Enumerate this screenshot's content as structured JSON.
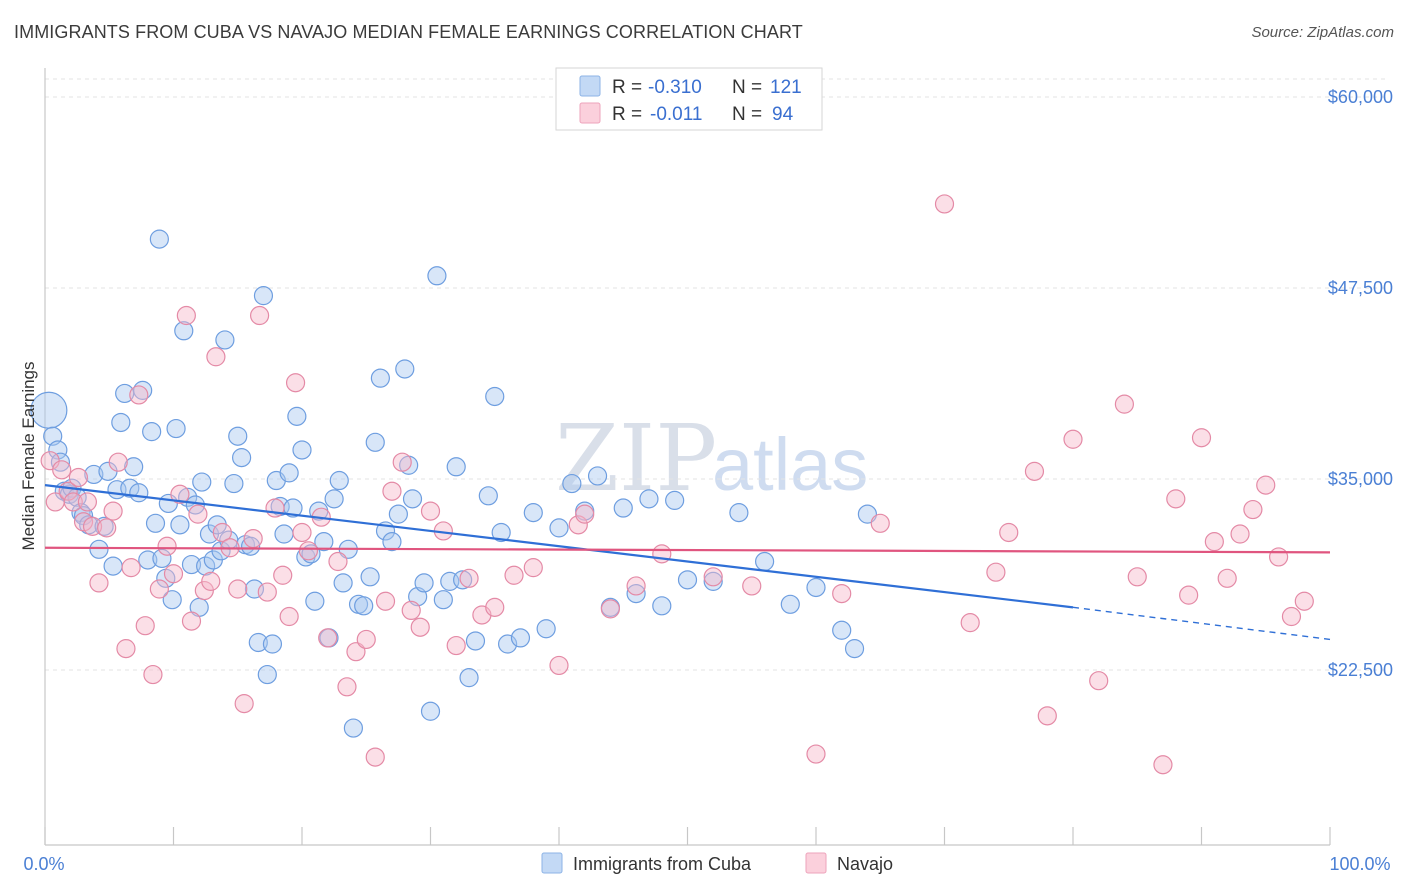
{
  "title": "IMMIGRANTS FROM CUBA VS NAVAJO MEDIAN FEMALE EARNINGS CORRELATION CHART",
  "source": "Source: ZipAtlas.com",
  "watermark": {
    "zip": "ZIP",
    "atlas": "atlas"
  },
  "legend": {
    "rows": [
      {
        "r_label": "R =",
        "r_value": "-0.310",
        "n_label": "N =",
        "n_value": "121",
        "color": "#a8c8f0"
      },
      {
        "r_label": "R =",
        "r_value": "-0.011",
        "n_label": "N =",
        "n_value": "94",
        "color": "#f6b8ca"
      }
    ]
  },
  "bottom_legend": [
    {
      "label": "Immigrants from Cuba",
      "color": "#a8c8f0"
    },
    {
      "label": "Navajo",
      "color": "#f6b8ca"
    }
  ],
  "chart_data": {
    "type": "scatter",
    "title": "IMMIGRANTS FROM CUBA VS NAVAJO MEDIAN FEMALE EARNINGS CORRELATION CHART",
    "xlabel": "",
    "ylabel": "Median Female Earnings",
    "xlim": [
      0,
      100
    ],
    "ylim": [
      12000,
      62000
    ],
    "x_tick_labels": [
      "0.0%",
      "100.0%"
    ],
    "y_ticks": [
      22500,
      35000,
      47500,
      60000
    ],
    "y_tick_labels": [
      "$22,500",
      "$35,000",
      "$47,500",
      "$60,000"
    ],
    "grid": true,
    "legend_position": "top-center",
    "series": [
      {
        "name": "Immigrants from Cuba",
        "color": "#a8c8f0",
        "stroke": "#6e9ee0",
        "trend": {
          "x0": 0,
          "y0": 34600,
          "x1": 80,
          "y1": 26600,
          "dash_to_x": 100,
          "dash_to_y": 24500,
          "color": "#2f6fd6"
        },
        "points": [
          [
            0.3,
            39500
          ],
          [
            0.6,
            37800
          ],
          [
            1.0,
            36900
          ],
          [
            1.2,
            36100
          ],
          [
            1.5,
            34200
          ],
          [
            1.9,
            34000
          ],
          [
            2.1,
            34400
          ],
          [
            2.5,
            33800
          ],
          [
            2.8,
            32800
          ],
          [
            3.0,
            32600
          ],
          [
            3.4,
            32000
          ],
          [
            3.8,
            35300
          ],
          [
            4.2,
            30400
          ],
          [
            4.6,
            31900
          ],
          [
            4.9,
            35500
          ],
          [
            5.3,
            29300
          ],
          [
            5.6,
            34300
          ],
          [
            5.9,
            38700
          ],
          [
            6.2,
            40600
          ],
          [
            6.6,
            34400
          ],
          [
            6.9,
            35800
          ],
          [
            7.3,
            34100
          ],
          [
            7.6,
            40800
          ],
          [
            8.0,
            29700
          ],
          [
            8.3,
            38100
          ],
          [
            8.6,
            32100
          ],
          [
            8.9,
            50700
          ],
          [
            9.1,
            29800
          ],
          [
            9.4,
            28500
          ],
          [
            9.6,
            33400
          ],
          [
            9.9,
            27100
          ],
          [
            10.2,
            38300
          ],
          [
            10.5,
            32000
          ],
          [
            10.8,
            44700
          ],
          [
            11.1,
            33800
          ],
          [
            11.4,
            29400
          ],
          [
            11.7,
            33300
          ],
          [
            12.0,
            26600
          ],
          [
            12.2,
            34800
          ],
          [
            12.5,
            29300
          ],
          [
            12.8,
            31400
          ],
          [
            13.1,
            29700
          ],
          [
            13.4,
            32000
          ],
          [
            13.7,
            30300
          ],
          [
            14.0,
            44100
          ],
          [
            14.3,
            31000
          ],
          [
            14.7,
            34700
          ],
          [
            15.0,
            37800
          ],
          [
            15.3,
            36400
          ],
          [
            15.6,
            30700
          ],
          [
            16.0,
            30600
          ],
          [
            16.3,
            27800
          ],
          [
            16.6,
            24300
          ],
          [
            17.0,
            47000
          ],
          [
            17.3,
            22200
          ],
          [
            17.7,
            24200
          ],
          [
            18.0,
            34900
          ],
          [
            18.3,
            33200
          ],
          [
            18.6,
            31400
          ],
          [
            19.0,
            35400
          ],
          [
            19.3,
            33100
          ],
          [
            19.6,
            39100
          ],
          [
            20.0,
            36900
          ],
          [
            20.3,
            29900
          ],
          [
            20.7,
            30100
          ],
          [
            21.0,
            27000
          ],
          [
            21.3,
            32900
          ],
          [
            21.7,
            30900
          ],
          [
            22.1,
            24600
          ],
          [
            22.5,
            33700
          ],
          [
            22.9,
            34900
          ],
          [
            23.2,
            28200
          ],
          [
            23.6,
            30400
          ],
          [
            24.0,
            18700
          ],
          [
            24.4,
            26800
          ],
          [
            24.8,
            26700
          ],
          [
            25.3,
            28600
          ],
          [
            25.7,
            37400
          ],
          [
            26.1,
            41600
          ],
          [
            26.5,
            31600
          ],
          [
            27.0,
            30900
          ],
          [
            27.5,
            32700
          ],
          [
            28.0,
            42200
          ],
          [
            28.3,
            35900
          ],
          [
            28.6,
            33700
          ],
          [
            29.0,
            27300
          ],
          [
            29.5,
            28200
          ],
          [
            30.0,
            19800
          ],
          [
            30.5,
            48300
          ],
          [
            31.0,
            27100
          ],
          [
            31.5,
            28300
          ],
          [
            32.0,
            35800
          ],
          [
            32.5,
            28400
          ],
          [
            33.0,
            22000
          ],
          [
            33.5,
            24400
          ],
          [
            34.5,
            33900
          ],
          [
            35.0,
            40400
          ],
          [
            35.5,
            31500
          ],
          [
            36.0,
            24200
          ],
          [
            37.0,
            24600
          ],
          [
            38.0,
            32800
          ],
          [
            39.0,
            25200
          ],
          [
            40.0,
            31800
          ],
          [
            41.0,
            34700
          ],
          [
            42.0,
            32900
          ],
          [
            43.0,
            35200
          ],
          [
            44.0,
            26600
          ],
          [
            45.0,
            33100
          ],
          [
            46.0,
            27500
          ],
          [
            47.0,
            33700
          ],
          [
            48.0,
            26700
          ],
          [
            49.0,
            33600
          ],
          [
            50.0,
            28400
          ],
          [
            52.0,
            28300
          ],
          [
            54.0,
            32800
          ],
          [
            56.0,
            29600
          ],
          [
            58.0,
            26800
          ],
          [
            60.0,
            27900
          ],
          [
            62.0,
            25100
          ],
          [
            63.0,
            23900
          ],
          [
            64.0,
            32700
          ]
        ]
      },
      {
        "name": "Navajo",
        "color": "#f6b8ca",
        "stroke": "#e48aa6",
        "trend": {
          "x0": 0,
          "y0": 30500,
          "x1": 100,
          "y1": 30200,
          "color": "#e0557f"
        },
        "points": [
          [
            0.4,
            36200
          ],
          [
            0.8,
            33500
          ],
          [
            1.3,
            35600
          ],
          [
            1.8,
            34200
          ],
          [
            2.2,
            33500
          ],
          [
            2.6,
            35100
          ],
          [
            3.0,
            32200
          ],
          [
            3.3,
            33500
          ],
          [
            3.7,
            31900
          ],
          [
            4.2,
            28200
          ],
          [
            4.8,
            31800
          ],
          [
            5.3,
            32900
          ],
          [
            5.7,
            36100
          ],
          [
            6.3,
            23900
          ],
          [
            6.7,
            29200
          ],
          [
            7.3,
            40500
          ],
          [
            7.8,
            25400
          ],
          [
            8.4,
            22200
          ],
          [
            8.9,
            27800
          ],
          [
            9.5,
            30600
          ],
          [
            10.0,
            28800
          ],
          [
            10.5,
            34000
          ],
          [
            11.0,
            45700
          ],
          [
            11.4,
            25700
          ],
          [
            11.9,
            32700
          ],
          [
            12.4,
            27700
          ],
          [
            12.9,
            28300
          ],
          [
            13.3,
            43000
          ],
          [
            13.8,
            31500
          ],
          [
            14.4,
            30500
          ],
          [
            15.0,
            27800
          ],
          [
            15.5,
            20300
          ],
          [
            16.2,
            31100
          ],
          [
            16.7,
            45700
          ],
          [
            17.3,
            27600
          ],
          [
            17.9,
            33100
          ],
          [
            18.5,
            28700
          ],
          [
            19.0,
            26000
          ],
          [
            19.5,
            41300
          ],
          [
            20.0,
            31500
          ],
          [
            20.5,
            30300
          ],
          [
            21.5,
            32500
          ],
          [
            22.0,
            24600
          ],
          [
            22.8,
            29600
          ],
          [
            23.5,
            21400
          ],
          [
            24.2,
            23700
          ],
          [
            25.0,
            24500
          ],
          [
            25.7,
            16800
          ],
          [
            26.5,
            27000
          ],
          [
            27.0,
            34200
          ],
          [
            27.8,
            36100
          ],
          [
            28.5,
            26400
          ],
          [
            29.2,
            25300
          ],
          [
            30.0,
            32900
          ],
          [
            31.0,
            31600
          ],
          [
            32.0,
            24100
          ],
          [
            33.0,
            28500
          ],
          [
            34.0,
            26100
          ],
          [
            35.0,
            26600
          ],
          [
            36.5,
            28700
          ],
          [
            38.0,
            29200
          ],
          [
            40.0,
            22800
          ],
          [
            41.5,
            32000
          ],
          [
            42.0,
            32700
          ],
          [
            44.0,
            26500
          ],
          [
            46.0,
            28000
          ],
          [
            48.0,
            30100
          ],
          [
            52.0,
            28600
          ],
          [
            55.0,
            28000
          ],
          [
            60.0,
            17000
          ],
          [
            62.0,
            27500
          ],
          [
            65.0,
            32100
          ],
          [
            70.0,
            53000
          ],
          [
            72.0,
            25600
          ],
          [
            74.0,
            28900
          ],
          [
            75.0,
            31500
          ],
          [
            77.0,
            35500
          ],
          [
            78.0,
            19500
          ],
          [
            80.0,
            37600
          ],
          [
            82.0,
            21800
          ],
          [
            84.0,
            39900
          ],
          [
            85.0,
            28600
          ],
          [
            87.0,
            16300
          ],
          [
            88.0,
            33700
          ],
          [
            89.0,
            27400
          ],
          [
            90.0,
            37700
          ],
          [
            91.0,
            30900
          ],
          [
            92.0,
            28500
          ],
          [
            93.0,
            31400
          ],
          [
            94.0,
            33000
          ],
          [
            95.0,
            34600
          ],
          [
            96.0,
            29900
          ],
          [
            97.0,
            26000
          ],
          [
            98.0,
            27000
          ]
        ]
      }
    ]
  }
}
